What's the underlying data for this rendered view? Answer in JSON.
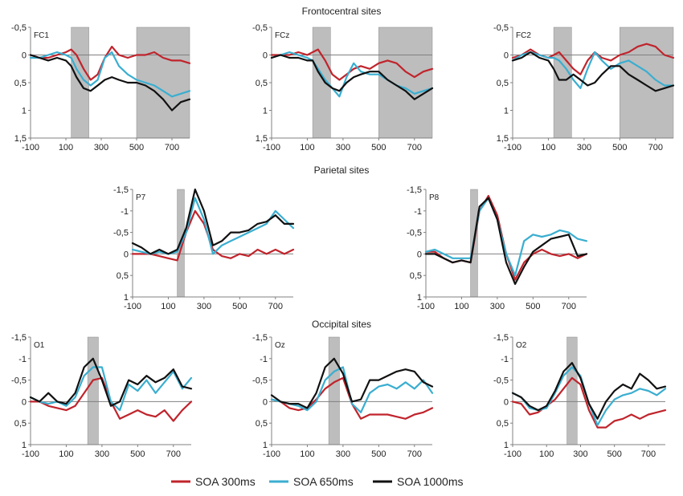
{
  "section_titles": {
    "frontocentral": "Frontocentral sites",
    "parietal": "Parietal sites",
    "occipital": "Occipital sites"
  },
  "legend": [
    {
      "label": "SOA 300ms",
      "color": "#c0242c"
    },
    {
      "label": "SOA 650ms",
      "color": "#3aaed0"
    },
    {
      "label": "SOA 1000ms",
      "color": "#111111"
    }
  ],
  "chart_data": [
    {
      "type": "line",
      "title": "FC1",
      "x_ticks": [
        "-100",
        "100",
        "300",
        "500",
        "700"
      ],
      "y_ticks": [
        "-0,5",
        "0",
        "0,5",
        "1",
        "1,5"
      ],
      "xlim": [
        -100,
        800
      ],
      "ylim": [
        -0.5,
        1.5
      ],
      "y_inverted": true,
      "shaded_windows": [
        [
          130,
          230
        ],
        [
          500,
          800
        ]
      ],
      "x": [
        -100,
        -50,
        0,
        50,
        100,
        130,
        160,
        200,
        240,
        280,
        320,
        360,
        400,
        450,
        500,
        550,
        600,
        650,
        700,
        750,
        800
      ],
      "series": [
        {
          "name": "SOA 300ms",
          "values": [
            0,
            0.05,
            0.05,
            0,
            -0.05,
            -0.1,
            0,
            0.25,
            0.45,
            0.35,
            0.05,
            -0.15,
            0,
            0.05,
            0,
            0,
            -0.05,
            0.05,
            0.1,
            0.1,
            0.15
          ]
        },
        {
          "name": "SOA 650ms",
          "values": [
            0.05,
            0.05,
            0,
            -0.05,
            0,
            0.05,
            0.25,
            0.45,
            0.55,
            0.45,
            0.05,
            -0.05,
            0.2,
            0.35,
            0.45,
            0.5,
            0.55,
            0.65,
            0.75,
            0.7,
            0.65
          ]
        },
        {
          "name": "SOA 1000ms",
          "values": [
            0,
            0.05,
            0.1,
            0.05,
            0.1,
            0.2,
            0.4,
            0.6,
            0.65,
            0.55,
            0.45,
            0.4,
            0.45,
            0.5,
            0.5,
            0.55,
            0.65,
            0.8,
            1.0,
            0.85,
            0.8
          ]
        }
      ]
    },
    {
      "type": "line",
      "title": "FCz",
      "x_ticks": [
        "-100",
        "100",
        "300",
        "500",
        "700"
      ],
      "y_ticks": [
        "-0,5",
        "0",
        "0,5",
        "1",
        "1,5"
      ],
      "xlim": [
        -100,
        800
      ],
      "ylim": [
        -0.5,
        1.5
      ],
      "y_inverted": true,
      "shaded_windows": [
        [
          130,
          230
        ],
        [
          500,
          800
        ]
      ],
      "x": [
        -100,
        -50,
        0,
        50,
        100,
        130,
        160,
        200,
        240,
        280,
        320,
        360,
        400,
        450,
        500,
        550,
        600,
        650,
        700,
        750,
        800
      ],
      "series": [
        {
          "name": "SOA 300ms",
          "values": [
            0,
            0,
            0,
            -0.05,
            0,
            -0.05,
            -0.1,
            0.1,
            0.35,
            0.45,
            0.35,
            0.25,
            0.2,
            0.25,
            0.15,
            0.1,
            0.15,
            0.3,
            0.4,
            0.3,
            0.25
          ]
        },
        {
          "name": "SOA 650ms",
          "values": [
            0.05,
            0,
            -0.05,
            0,
            0.05,
            0.1,
            0.25,
            0.45,
            0.6,
            0.75,
            0.4,
            0.15,
            0.3,
            0.35,
            0.35,
            0.45,
            0.55,
            0.6,
            0.7,
            0.65,
            0.6
          ]
        },
        {
          "name": "SOA 1000ms",
          "values": [
            0.05,
            0,
            0.05,
            0.05,
            0.1,
            0.1,
            0.3,
            0.5,
            0.6,
            0.65,
            0.5,
            0.4,
            0.35,
            0.3,
            0.3,
            0.45,
            0.55,
            0.65,
            0.8,
            0.7,
            0.6
          ]
        }
      ]
    },
    {
      "type": "line",
      "title": "FC2",
      "x_ticks": [
        "-100",
        "100",
        "300",
        "500",
        "700"
      ],
      "y_ticks": [
        "-0,5",
        "0",
        "0,5",
        "1",
        "1,5"
      ],
      "xlim": [
        -100,
        800
      ],
      "ylim": [
        -0.5,
        1.5
      ],
      "y_inverted": true,
      "shaded_windows": [
        [
          130,
          230
        ],
        [
          500,
          800
        ]
      ],
      "x": [
        -100,
        -50,
        0,
        50,
        100,
        130,
        160,
        200,
        240,
        280,
        320,
        360,
        400,
        450,
        500,
        550,
        600,
        650,
        700,
        750,
        800
      ],
      "series": [
        {
          "name": "SOA 300ms",
          "values": [
            0.05,
            0,
            -0.1,
            0,
            0.05,
            0,
            -0.05,
            0.1,
            0.25,
            0.35,
            0.1,
            -0.05,
            0.05,
            0.1,
            0,
            -0.05,
            -0.15,
            -0.2,
            -0.15,
            0,
            0.05
          ]
        },
        {
          "name": "SOA 650ms",
          "values": [
            0.1,
            0,
            -0.05,
            0,
            0.05,
            0.05,
            0.1,
            0.25,
            0.45,
            0.6,
            0.25,
            -0.05,
            0.1,
            0.25,
            0.15,
            0.1,
            0.2,
            0.3,
            0.45,
            0.55,
            0.55
          ]
        },
        {
          "name": "SOA 1000ms",
          "values": [
            0.1,
            0.05,
            -0.05,
            0.05,
            0.1,
            0.25,
            0.45,
            0.45,
            0.35,
            0.45,
            0.55,
            0.5,
            0.35,
            0.2,
            0.2,
            0.35,
            0.45,
            0.55,
            0.65,
            0.6,
            0.55
          ]
        }
      ]
    },
    {
      "type": "line",
      "title": "P7",
      "x_ticks": [
        "-100",
        "100",
        "300",
        "500",
        "700"
      ],
      "y_ticks": [
        "-1,5",
        "-1",
        "-0,5",
        "0",
        "0,5",
        "1"
      ],
      "xlim": [
        -100,
        800
      ],
      "ylim": [
        -1.5,
        1
      ],
      "y_inverted": true,
      "shaded_windows": [
        [
          150,
          190
        ]
      ],
      "x": [
        -100,
        -50,
        0,
        50,
        100,
        150,
        200,
        250,
        300,
        350,
        400,
        450,
        500,
        550,
        600,
        650,
        700,
        750,
        800
      ],
      "series": [
        {
          "name": "SOA 300ms",
          "values": [
            0,
            0,
            0,
            0.05,
            0.1,
            0.15,
            -0.5,
            -1.0,
            -0.7,
            -0.1,
            0.05,
            0.1,
            0,
            0.05,
            -0.1,
            0,
            -0.1,
            0,
            -0.1
          ]
        },
        {
          "name": "SOA 650ms",
          "values": [
            -0.1,
            -0.05,
            0,
            -0.05,
            0,
            -0.05,
            -0.5,
            -1.3,
            -0.8,
            0,
            -0.2,
            -0.3,
            -0.4,
            -0.5,
            -0.6,
            -0.7,
            -1.0,
            -0.8,
            -0.6
          ]
        },
        {
          "name": "SOA 1000ms",
          "values": [
            -0.25,
            -0.15,
            0,
            -0.1,
            0,
            -0.1,
            -0.6,
            -1.5,
            -1.0,
            -0.2,
            -0.3,
            -0.5,
            -0.5,
            -0.55,
            -0.7,
            -0.75,
            -0.9,
            -0.7,
            -0.7
          ]
        }
      ]
    },
    {
      "type": "line",
      "title": "P8",
      "x_ticks": [
        "-100",
        "100",
        "300",
        "500",
        "700"
      ],
      "y_ticks": [
        "-1,5",
        "-1",
        "-0,5",
        "0",
        "0,5",
        "1"
      ],
      "xlim": [
        -100,
        800
      ],
      "ylim": [
        -1.5,
        1
      ],
      "y_inverted": true,
      "shaded_windows": [
        [
          150,
          190
        ]
      ],
      "x": [
        -100,
        -50,
        0,
        50,
        100,
        150,
        200,
        250,
        300,
        350,
        400,
        450,
        500,
        550,
        600,
        650,
        700,
        750,
        800
      ],
      "series": [
        {
          "name": "SOA 300ms",
          "values": [
            -0.05,
            -0.05,
            0.1,
            0.2,
            0.15,
            0.2,
            -1.0,
            -1.35,
            -0.9,
            0,
            0.6,
            0.2,
            0,
            -0.1,
            0,
            0.05,
            0,
            0.1,
            0
          ]
        },
        {
          "name": "SOA 650ms",
          "values": [
            -0.05,
            -0.1,
            0,
            0.1,
            0.1,
            0.1,
            -1.0,
            -1.3,
            -0.8,
            0,
            0.5,
            -0.3,
            -0.45,
            -0.4,
            -0.45,
            -0.55,
            -0.5,
            -0.35,
            -0.3
          ]
        },
        {
          "name": "SOA 1000ms",
          "values": [
            0,
            0,
            0.1,
            0.2,
            0.15,
            0.2,
            -1.1,
            -1.3,
            -0.8,
            0.2,
            0.7,
            0.3,
            -0.05,
            -0.2,
            -0.35,
            -0.4,
            -0.45,
            0.05,
            0
          ]
        }
      ]
    },
    {
      "type": "line",
      "title": "O1",
      "x_ticks": [
        "-100",
        "100",
        "300",
        "500",
        "700"
      ],
      "y_ticks": [
        "-1,5",
        "-1",
        "-0,5",
        "0",
        "0,5",
        "1"
      ],
      "xlim": [
        -100,
        800
      ],
      "ylim": [
        -1.5,
        1
      ],
      "y_inverted": true,
      "shaded_windows": [
        [
          220,
          280
        ]
      ],
      "x": [
        -100,
        -50,
        0,
        50,
        100,
        150,
        200,
        250,
        300,
        350,
        400,
        450,
        500,
        550,
        600,
        650,
        700,
        750,
        800
      ],
      "series": [
        {
          "name": "SOA 300ms",
          "values": [
            0,
            0,
            0.1,
            0.15,
            0.2,
            0.1,
            -0.2,
            -0.5,
            -0.55,
            0,
            0.4,
            0.3,
            0.2,
            0.3,
            0.35,
            0.2,
            0.45,
            0.2,
            0
          ]
        },
        {
          "name": "SOA 650ms",
          "values": [
            -0.1,
            0,
            0.05,
            0,
            0.1,
            -0.1,
            -0.6,
            -0.8,
            -0.8,
            0,
            0.2,
            -0.4,
            -0.25,
            -0.5,
            -0.2,
            -0.45,
            -0.7,
            -0.3,
            -0.55
          ]
        },
        {
          "name": "SOA 1000ms",
          "values": [
            -0.1,
            0,
            -0.2,
            0,
            0.05,
            -0.2,
            -0.8,
            -1.0,
            -0.5,
            0.1,
            0,
            -0.5,
            -0.4,
            -0.6,
            -0.45,
            -0.55,
            -0.75,
            -0.35,
            -0.3
          ]
        }
      ]
    },
    {
      "type": "line",
      "title": "Oz",
      "x_ticks": [
        "-100",
        "100",
        "300",
        "500",
        "700"
      ],
      "y_ticks": [
        "-1,5",
        "-1",
        "-0,5",
        "0",
        "0,5",
        "1"
      ],
      "xlim": [
        -100,
        800
      ],
      "ylim": [
        -1.5,
        1
      ],
      "y_inverted": true,
      "shaded_windows": [
        [
          220,
          280
        ]
      ],
      "x": [
        -100,
        -50,
        0,
        50,
        100,
        150,
        200,
        250,
        300,
        350,
        400,
        450,
        500,
        550,
        600,
        650,
        700,
        750,
        800
      ],
      "series": [
        {
          "name": "SOA 300ms",
          "values": [
            -0.05,
            0,
            0.15,
            0.2,
            0.15,
            -0.05,
            -0.3,
            -0.45,
            -0.55,
            0.05,
            0.4,
            0.3,
            0.3,
            0.3,
            0.35,
            0.4,
            0.3,
            0.25,
            0.15
          ]
        },
        {
          "name": "SOA 650ms",
          "values": [
            -0.05,
            0,
            0.05,
            0.1,
            0.2,
            0,
            -0.5,
            -0.7,
            -0.8,
            0.05,
            0.25,
            -0.2,
            -0.35,
            -0.4,
            -0.3,
            -0.45,
            -0.3,
            -0.5,
            -0.2
          ]
        },
        {
          "name": "SOA 1000ms",
          "values": [
            -0.15,
            0,
            0.05,
            0.05,
            0.15,
            -0.2,
            -0.8,
            -1.0,
            -0.65,
            0,
            -0.05,
            -0.5,
            -0.5,
            -0.6,
            -0.7,
            -0.75,
            -0.7,
            -0.45,
            -0.35
          ]
        }
      ]
    },
    {
      "type": "line",
      "title": "O2",
      "x_ticks": [
        "-100",
        "100",
        "300",
        "500",
        "700"
      ],
      "y_ticks": [
        "-1,5",
        "-1",
        "-0,5",
        "0",
        "0,5",
        "1"
      ],
      "xlim": [
        -100,
        800
      ],
      "ylim": [
        -1.5,
        1
      ],
      "y_inverted": true,
      "shaded_windows": [
        [
          220,
          280
        ]
      ],
      "x": [
        -100,
        -50,
        0,
        50,
        100,
        150,
        200,
        250,
        300,
        350,
        400,
        450,
        500,
        550,
        600,
        650,
        700,
        750,
        800
      ],
      "series": [
        {
          "name": "SOA 300ms",
          "values": [
            0,
            0.05,
            0.3,
            0.25,
            0.1,
            -0.05,
            -0.3,
            -0.55,
            -0.4,
            0.2,
            0.6,
            0.6,
            0.45,
            0.4,
            0.3,
            0.4,
            0.3,
            0.25,
            0.2
          ]
        },
        {
          "name": "SOA 650ms",
          "values": [
            -0.2,
            -0.1,
            0.15,
            0.2,
            0.15,
            -0.2,
            -0.6,
            -0.8,
            -0.6,
            0.05,
            0.55,
            0.2,
            -0.05,
            -0.15,
            -0.2,
            -0.3,
            -0.25,
            -0.15,
            -0.3
          ]
        },
        {
          "name": "SOA 1000ms",
          "values": [
            -0.2,
            -0.1,
            0.1,
            0.2,
            0.1,
            -0.25,
            -0.7,
            -0.9,
            -0.55,
            0.05,
            0.4,
            0,
            -0.25,
            -0.4,
            -0.3,
            -0.65,
            -0.5,
            -0.3,
            -0.35
          ]
        }
      ]
    }
  ]
}
